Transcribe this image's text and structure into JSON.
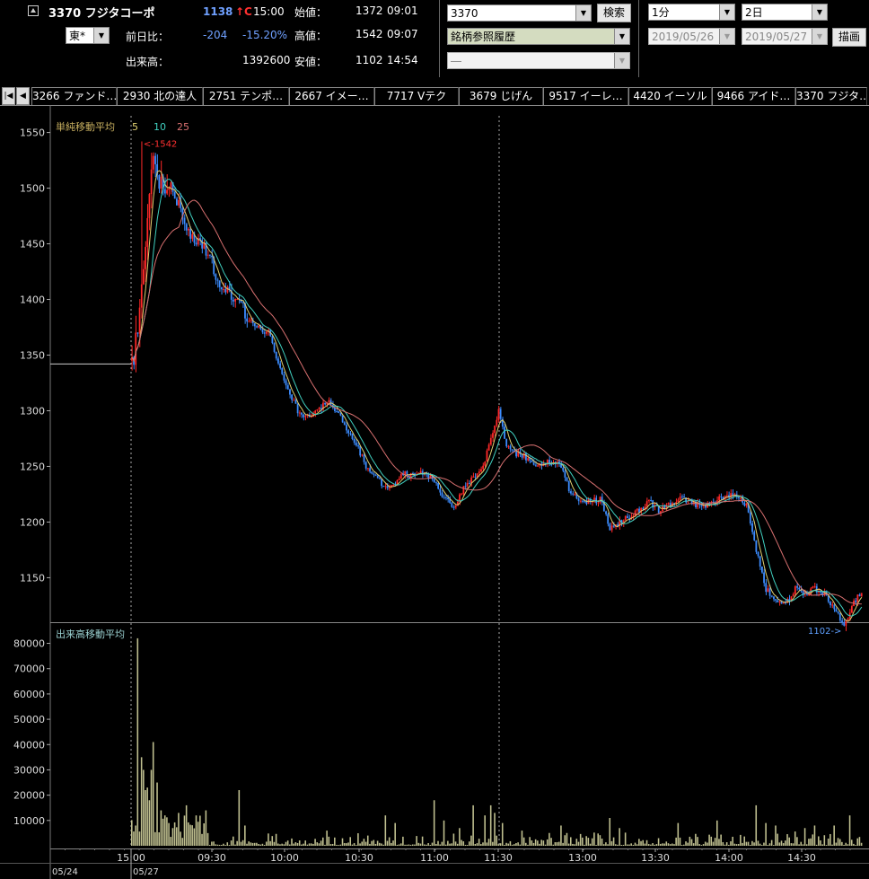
{
  "header": {
    "code_name": "3370 フジタコーポ",
    "price": "1138",
    "price_mark": "↑C",
    "time": "15:00",
    "market": "東*",
    "change_label": "前日比：",
    "change": "-204",
    "change_pct": "-15.20%",
    "volume_label": "出来高：",
    "volume": "1392600",
    "open_label": "始値：",
    "open": "1372",
    "open_time": "09:01",
    "high_label": "高値：",
    "high": "1542",
    "high_time": "09:07",
    "low_label": "安値：",
    "low": "1102",
    "low_time": "14:54"
  },
  "search": {
    "code_value": "3370",
    "search_button": "検索",
    "history_value": "銘柄参照履歴",
    "extra_value": "―"
  },
  "period": {
    "interval": "1分",
    "days": "2日",
    "from_date": "2019/05/26",
    "to_date": "2019/05/27",
    "draw_button": "描画"
  },
  "tabs": [
    "3266 ファンド…",
    "2930 北の達人",
    "2751 テンポ…",
    "2667 イメー…",
    "7717 Vテク",
    "3679 じげん",
    "9517 イーレ…",
    "4420 イーソル",
    "9466 アイド…",
    "3370 フジタ…"
  ],
  "chart_data": {
    "type": "candlestick",
    "price_panel": {
      "title": "単純移動平均",
      "ma_periods": [
        "5",
        "10",
        "25"
      ],
      "ma_colors": [
        "#e0d070",
        "#40d0c0",
        "#d87070"
      ],
      "y_ticks": [
        "1550",
        "1500",
        "1450",
        "1400",
        "1350",
        "1300",
        "1250",
        "1200",
        "1150"
      ],
      "ylim": [
        1110,
        1565
      ],
      "high_marker": "<-1542",
      "low_marker": "1102->",
      "prev_close": 1342,
      "anchors": [
        [
          0,
          1345
        ],
        [
          3,
          1365
        ],
        [
          6,
          1440
        ],
        [
          9,
          1500
        ],
        [
          12,
          1530
        ],
        [
          16,
          1495
        ],
        [
          20,
          1500
        ],
        [
          25,
          1480
        ],
        [
          30,
          1455
        ],
        [
          35,
          1450
        ],
        [
          40,
          1440
        ],
        [
          45,
          1410
        ],
        [
          50,
          1405
        ],
        [
          55,
          1400
        ],
        [
          60,
          1380
        ],
        [
          65,
          1375
        ],
        [
          70,
          1370
        ],
        [
          75,
          1340
        ],
        [
          80,
          1320
        ],
        [
          85,
          1300
        ],
        [
          90,
          1295
        ],
        [
          95,
          1300
        ],
        [
          100,
          1310
        ],
        [
          105,
          1300
        ],
        [
          110,
          1285
        ],
        [
          115,
          1270
        ],
        [
          120,
          1250
        ],
        [
          125,
          1240
        ],
        [
          130,
          1230
        ],
        [
          135,
          1235
        ],
        [
          140,
          1245
        ],
        [
          145,
          1240
        ],
        [
          150,
          1245
        ],
        [
          155,
          1238
        ],
        [
          160,
          1220
        ],
        [
          165,
          1215
        ],
        [
          170,
          1230
        ],
        [
          175,
          1240
        ],
        [
          180,
          1250
        ],
        [
          185,
          1280
        ],
        [
          188,
          1300
        ],
        [
          192,
          1270
        ],
        [
          195,
          1262
        ],
        [
          200,
          1260
        ],
        [
          205,
          1255
        ],
        [
          210,
          1250
        ],
        [
          215,
          1255
        ],
        [
          220,
          1250
        ],
        [
          225,
          1225
        ],
        [
          230,
          1220
        ],
        [
          235,
          1218
        ],
        [
          240,
          1220
        ],
        [
          245,
          1195
        ],
        [
          250,
          1200
        ],
        [
          255,
          1205
        ],
        [
          260,
          1210
        ],
        [
          265,
          1220
        ],
        [
          270,
          1210
        ],
        [
          275,
          1215
        ],
        [
          280,
          1220
        ],
        [
          285,
          1220
        ],
        [
          290,
          1215
        ],
        [
          295,
          1215
        ],
        [
          300,
          1220
        ],
        [
          305,
          1225
        ],
        [
          310,
          1225
        ],
        [
          315,
          1215
        ],
        [
          320,
          1175
        ],
        [
          325,
          1140
        ],
        [
          330,
          1130
        ],
        [
          335,
          1125
        ],
        [
          340,
          1140
        ],
        [
          345,
          1135
        ],
        [
          350,
          1140
        ],
        [
          355,
          1135
        ],
        [
          360,
          1120
        ],
        [
          365,
          1108
        ],
        [
          370,
          1128
        ],
        [
          374,
          1138
        ]
      ]
    },
    "volume_panel": {
      "title": "出来高移動平均",
      "color": "#c0c090",
      "y_ticks": [
        "80000",
        "70000",
        "60000",
        "50000",
        "40000",
        "30000",
        "20000",
        "10000"
      ],
      "ylim": [
        0,
        88000
      ],
      "spikes": [
        [
          2,
          8000
        ],
        [
          3,
          82000
        ],
        [
          5,
          35000
        ],
        [
          6,
          30000
        ],
        [
          7,
          22000
        ],
        [
          8,
          23000
        ],
        [
          9,
          18000
        ],
        [
          10,
          30000
        ],
        [
          11,
          41000
        ],
        [
          13,
          25000
        ],
        [
          15,
          14000
        ],
        [
          17,
          12000
        ],
        [
          19,
          9000
        ],
        [
          21,
          7000
        ],
        [
          24,
          13000
        ],
        [
          28,
          16000
        ],
        [
          33,
          12000
        ],
        [
          38,
          14000
        ],
        [
          55,
          22000
        ],
        [
          58,
          8000
        ],
        [
          100,
          6000
        ],
        [
          130,
          12000
        ],
        [
          135,
          9000
        ],
        [
          155,
          18000
        ],
        [
          160,
          10000
        ],
        [
          168,
          7000
        ],
        [
          175,
          16000
        ],
        [
          181,
          12000
        ],
        [
          184,
          16000
        ],
        [
          186,
          13000
        ],
        [
          190,
          9000
        ],
        [
          200,
          6000
        ],
        [
          220,
          8000
        ],
        [
          245,
          11000
        ],
        [
          250,
          7000
        ],
        [
          280,
          9000
        ],
        [
          300,
          10000
        ],
        [
          320,
          16000
        ],
        [
          325,
          9000
        ],
        [
          330,
          8000
        ],
        [
          345,
          7000
        ],
        [
          350,
          8000
        ],
        [
          360,
          8000
        ],
        [
          368,
          12000
        ]
      ]
    },
    "x_ticks": [
      "15:00",
      "09:30",
      "10:00",
      "10:30",
      "11:00",
      "11:30",
      "13:00",
      "13:30",
      "14:00",
      "14:30"
    ],
    "date_labels": [
      "05/24",
      "05/27"
    ]
  }
}
